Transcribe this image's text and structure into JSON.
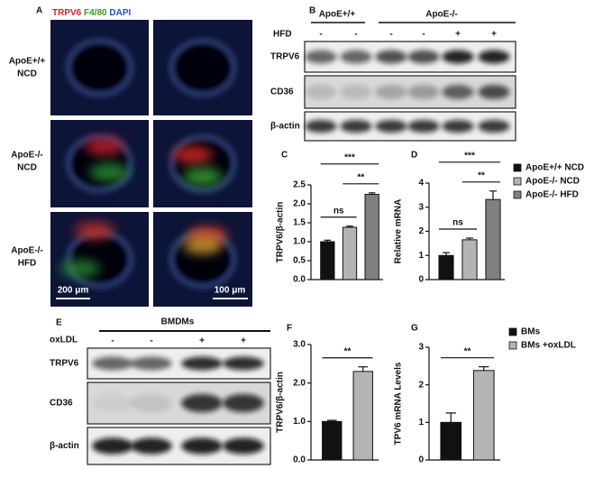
{
  "figure": {
    "panel_labels": [
      "A",
      "B",
      "C",
      "D",
      "E",
      "F",
      "G"
    ],
    "staining": [
      "TRPV6",
      "F4/80",
      "DAPI"
    ],
    "row_labels": [
      [
        "ApoE+/+",
        "NCD"
      ],
      [
        "ApoE-/-",
        "NCD"
      ],
      [
        "ApoE-/-",
        "HFD"
      ]
    ],
    "scale_bars": [
      "200 μm",
      "100 μm"
    ],
    "blot_b": {
      "groups": [
        "ApoE+/+",
        "ApoE-/-"
      ],
      "treatment": "HFD",
      "signs": [
        "-",
        "-",
        "-",
        "-",
        "+",
        "+"
      ],
      "rows": [
        "TRPV6",
        "CD36",
        "β-actin"
      ]
    },
    "blot_e": {
      "group": "BMDMs",
      "treatment": "oxLDL",
      "signs": [
        "-",
        "-",
        "+",
        "+"
      ],
      "rows": [
        "TRPV6",
        "CD36",
        "β-actin"
      ]
    }
  },
  "chart_data": [
    {
      "type": "bar",
      "ylabel": "TRPV6/β-actin",
      "categories": [
        null,
        null,
        null
      ],
      "values": [
        1.0,
        1.38,
        2.25
      ],
      "errors": [
        0.04,
        0.03,
        0.04
      ],
      "colors": [
        "#111111",
        "#b4b4b4",
        "#808080"
      ],
      "ylim": [
        0,
        2.5
      ],
      "yticks": [
        {
          "value": 0,
          "label": "0.0"
        },
        {
          "value": 0.5,
          "label": "0.5"
        },
        {
          "value": 1,
          "label": "1.0"
        },
        {
          "value": 1.5,
          "label": "1.5"
        },
        {
          "value": 2,
          "label": "2.0"
        },
        {
          "value": 2.5,
          "label": "2.5"
        }
      ],
      "annotations": [
        {
          "text": "ns",
          "from": 0,
          "to": 1
        },
        {
          "text": "**",
          "from": 1,
          "to": 2
        },
        {
          "text": "***",
          "from": 0,
          "to": 2
        }
      ]
    },
    {
      "type": "bar",
      "ylabel": "Relative mRNA",
      "categories": [
        null,
        null,
        null
      ],
      "values": [
        1.0,
        1.65,
        3.32
      ],
      "errors": [
        0.12,
        0.07,
        0.35
      ],
      "colors": [
        "#111111",
        "#b4b4b4",
        "#808080"
      ],
      "ylim": [
        0,
        4
      ],
      "yticks": [
        0,
        1,
        2,
        3,
        4
      ],
      "annotations": [
        {
          "text": "ns",
          "from": 0,
          "to": 1
        },
        {
          "text": "**",
          "from": 1,
          "to": 2
        },
        {
          "text": "***",
          "from": 0,
          "to": 2
        }
      ],
      "legend": [
        "ApoE+/+ NCD",
        "ApoE-/- NCD",
        "ApoE-/- HFD"
      ],
      "legend_position": "right"
    },
    {
      "type": "bar",
      "ylabel": "TRPV6/β-actin",
      "categories": [
        null,
        null
      ],
      "values": [
        1.0,
        2.3
      ],
      "errors": [
        0.03,
        0.12
      ],
      "colors": [
        "#111111",
        "#b4b4b4"
      ],
      "ylim": [
        0,
        3
      ],
      "yticks": [
        {
          "value": 0,
          "label": "0.0"
        },
        {
          "value": 1,
          "label": "1.0"
        },
        {
          "value": 2,
          "label": "2.0"
        },
        {
          "value": 3,
          "label": "3.0"
        }
      ],
      "annotations": [
        {
          "text": "**",
          "from": 0,
          "to": 1
        }
      ]
    },
    {
      "type": "bar",
      "ylabel": "TPV6 mRNA Levels",
      "categories": [
        null,
        null
      ],
      "values": [
        1.0,
        2.38
      ],
      "errors": [
        0.25,
        0.1
      ],
      "colors": [
        "#111111",
        "#b4b4b4"
      ],
      "ylim": [
        0,
        3
      ],
      "yticks": [
        0,
        1,
        2,
        3
      ],
      "annotations": [
        {
          "text": "**",
          "from": 0,
          "to": 1
        }
      ],
      "legend": [
        "BMs",
        "BMs +oxLDL"
      ],
      "legend_position": "right"
    }
  ]
}
